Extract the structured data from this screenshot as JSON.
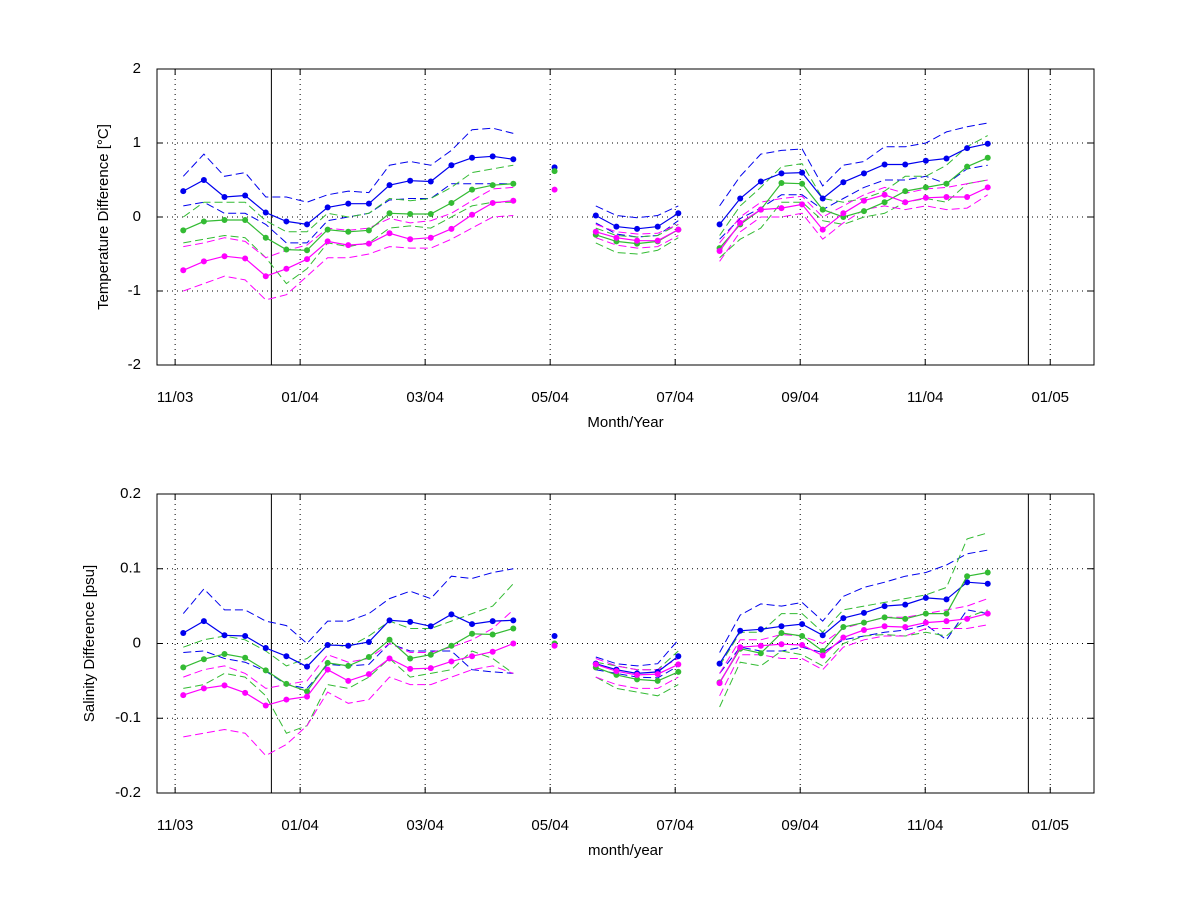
{
  "chart_data": [
    {
      "type": "line",
      "xlabel": "Month/Year",
      "ylabel": "Temperature Difference [°C]",
      "x": [
        0.13,
        0.46,
        0.79,
        1.12,
        1.45,
        1.78,
        2.11,
        2.44,
        2.77,
        3.1,
        3.43,
        3.76,
        4.09,
        4.42,
        4.75,
        5.08,
        5.41,
        5.74,
        6.07,
        6.4,
        6.73,
        7.06,
        7.39,
        7.72,
        8.05,
        8.38,
        8.71,
        9.04,
        9.37,
        9.7,
        10.03,
        10.36,
        10.69,
        11.02,
        11.35,
        11.68,
        12.01,
        12.34,
        12.67,
        13.0
      ],
      "xlim": [
        -0.29,
        14.7
      ],
      "xticks": [
        {
          "value": 0,
          "label": "11/03"
        },
        {
          "value": 2,
          "label": "01/04"
        },
        {
          "value": 4,
          "label": "03/04"
        },
        {
          "value": 6,
          "label": "05/04"
        },
        {
          "value": 8,
          "label": "07/04"
        },
        {
          "value": 10,
          "label": "09/04"
        },
        {
          "value": 12,
          "label": "11/04"
        },
        {
          "value": 14,
          "label": "01/05"
        }
      ],
      "ylim": [
        -2,
        2
      ],
      "yticks": [
        2,
        1,
        0,
        -1,
        -2
      ],
      "grid": true,
      "vlines": [
        1.54,
        13.65
      ],
      "series": [
        {
          "color": "#0000ee",
          "dashed": true,
          "values": [
            0.55,
            0.85,
            0.55,
            0.6,
            0.27,
            0.27,
            0.2,
            0.3,
            0.35,
            0.33,
            0.7,
            0.75,
            0.7,
            0.9,
            1.18,
            1.2,
            1.13,
            null,
            null,
            null,
            0.15,
            0.02,
            -0.01,
            0.02,
            0.15,
            null,
            0.15,
            0.55,
            0.85,
            0.9,
            0.92,
            0.42,
            0.7,
            0.75,
            0.95,
            0.95,
            1.0,
            1.15,
            1.22,
            1.27
          ]
        },
        {
          "color": "#0000ee",
          "dashed": true,
          "values": [
            0.15,
            0.2,
            0.05,
            0.05,
            -0.1,
            -0.35,
            -0.35,
            -0.05,
            0.0,
            0.05,
            0.23,
            0.25,
            0.25,
            0.45,
            0.45,
            0.45,
            0.45,
            null,
            null,
            null,
            -0.08,
            -0.23,
            -0.27,
            -0.25,
            -0.05,
            null,
            -0.3,
            -0.02,
            0.12,
            0.3,
            0.3,
            0.1,
            0.25,
            0.4,
            0.5,
            0.5,
            0.55,
            0.45,
            0.65,
            0.7
          ]
        },
        {
          "color": "#33bb33",
          "dashed": true,
          "values": [
            0.0,
            0.2,
            0.2,
            0.2,
            -0.05,
            -0.2,
            -0.2,
            0.05,
            0.0,
            0.05,
            0.25,
            0.22,
            0.25,
            0.4,
            0.6,
            0.65,
            0.7,
            null,
            null,
            null,
            -0.15,
            -0.25,
            -0.27,
            -0.25,
            -0.1,
            null,
            -0.25,
            0.15,
            0.4,
            0.68,
            0.72,
            0.25,
            0.2,
            0.25,
            0.35,
            0.55,
            0.55,
            0.7,
            0.95,
            1.1
          ]
        },
        {
          "color": "#33bb33",
          "dashed": true,
          "values": [
            -0.35,
            -0.3,
            -0.25,
            -0.28,
            -0.55,
            -0.9,
            -0.7,
            -0.35,
            -0.4,
            -0.35,
            -0.15,
            -0.12,
            -0.15,
            0.0,
            0.15,
            0.2,
            0.2,
            null,
            null,
            null,
            -0.35,
            -0.48,
            -0.5,
            -0.45,
            -0.28,
            null,
            -0.55,
            -0.3,
            -0.15,
            0.2,
            0.2,
            -0.05,
            -0.1,
            0.0,
            0.05,
            0.2,
            0.25,
            0.2,
            0.45,
            0.5
          ]
        },
        {
          "color": "#ff00ff",
          "dashed": true,
          "values": [
            -0.4,
            -0.35,
            -0.28,
            -0.33,
            -0.55,
            -0.45,
            -0.38,
            -0.15,
            -0.18,
            -0.15,
            -0.02,
            -0.08,
            -0.05,
            0.05,
            0.22,
            0.38,
            0.4,
            null,
            null,
            null,
            -0.1,
            -0.2,
            -0.23,
            -0.22,
            -0.1,
            null,
            -0.35,
            0.0,
            0.2,
            0.25,
            0.28,
            0.0,
            0.15,
            0.3,
            0.4,
            0.32,
            0.38,
            0.4,
            0.45,
            0.5
          ]
        },
        {
          "color": "#ff00ff",
          "dashed": true,
          "values": [
            -1.0,
            -0.9,
            -0.8,
            -0.85,
            -1.12,
            -1.05,
            -0.8,
            -0.55,
            -0.55,
            -0.5,
            -0.4,
            -0.42,
            -0.42,
            -0.3,
            -0.15,
            0.0,
            0.02,
            null,
            null,
            null,
            -0.28,
            -0.38,
            -0.42,
            -0.4,
            -0.25,
            null,
            -0.6,
            -0.2,
            0.0,
            0.0,
            0.05,
            -0.3,
            -0.08,
            0.1,
            0.15,
            0.1,
            0.15,
            0.1,
            0.12,
            0.3
          ]
        },
        {
          "color": "#0000ee",
          "values": [
            0.35,
            0.5,
            0.27,
            0.29,
            0.06,
            -0.06,
            -0.1,
            0.13,
            0.18,
            0.18,
            0.43,
            0.49,
            0.48,
            0.7,
            0.8,
            0.82,
            0.78,
            null,
            0.67,
            null,
            0.02,
            -0.13,
            -0.16,
            -0.13,
            0.05,
            null,
            -0.1,
            0.25,
            0.48,
            0.59,
            0.6,
            0.25,
            0.47,
            0.59,
            0.71,
            0.71,
            0.76,
            0.79,
            0.93,
            0.99
          ]
        },
        {
          "color": "#33bb33",
          "values": [
            -0.18,
            -0.06,
            -0.04,
            -0.04,
            -0.28,
            -0.44,
            -0.45,
            -0.17,
            -0.2,
            -0.18,
            0.05,
            0.04,
            0.04,
            0.19,
            0.37,
            0.43,
            0.45,
            null,
            0.62,
            null,
            -0.24,
            -0.33,
            -0.36,
            -0.33,
            -0.17,
            null,
            -0.42,
            -0.1,
            0.1,
            0.46,
            0.45,
            0.1,
            0.0,
            0.08,
            0.2,
            0.35,
            0.4,
            0.45,
            0.68,
            0.8
          ]
        },
        {
          "color": "#ff00ff",
          "values": [
            -0.72,
            -0.6,
            -0.53,
            -0.56,
            -0.8,
            -0.7,
            -0.57,
            -0.33,
            -0.38,
            -0.36,
            -0.22,
            -0.3,
            -0.28,
            -0.16,
            0.03,
            0.19,
            0.22,
            null,
            0.37,
            null,
            -0.2,
            -0.28,
            -0.32,
            -0.32,
            -0.17,
            null,
            -0.46,
            -0.08,
            0.1,
            0.12,
            0.17,
            -0.17,
            0.05,
            0.22,
            0.3,
            0.2,
            0.26,
            0.27,
            0.27,
            0.4
          ]
        }
      ]
    },
    {
      "type": "line",
      "xlabel": "month/year",
      "ylabel": "Salinity Difference [psu]",
      "x": [
        0.13,
        0.46,
        0.79,
        1.12,
        1.45,
        1.78,
        2.11,
        2.44,
        2.77,
        3.1,
        3.43,
        3.76,
        4.09,
        4.42,
        4.75,
        5.08,
        5.41,
        5.74,
        6.07,
        6.4,
        6.73,
        7.06,
        7.39,
        7.72,
        8.05,
        8.38,
        8.71,
        9.04,
        9.37,
        9.7,
        10.03,
        10.36,
        10.69,
        11.02,
        11.35,
        11.68,
        12.01,
        12.34,
        12.67,
        13.0
      ],
      "xlim": [
        -0.29,
        14.7
      ],
      "xticks": [
        {
          "value": 0,
          "label": "11/03"
        },
        {
          "value": 2,
          "label": "01/04"
        },
        {
          "value": 4,
          "label": "03/04"
        },
        {
          "value": 6,
          "label": "05/04"
        },
        {
          "value": 8,
          "label": "07/04"
        },
        {
          "value": 10,
          "label": "09/04"
        },
        {
          "value": 12,
          "label": "11/04"
        },
        {
          "value": 14,
          "label": "01/05"
        }
      ],
      "ylim": [
        -0.2,
        0.2
      ],
      "yticks": [
        0.2,
        0.1,
        0,
        -0.1,
        -0.2
      ],
      "grid": true,
      "vlines": [
        1.54,
        13.65
      ],
      "series": [
        {
          "color": "#0000ee",
          "dashed": true,
          "values": [
            0.04,
            0.073,
            0.045,
            0.045,
            0.03,
            0.024,
            0.0,
            0.03,
            0.03,
            0.04,
            0.06,
            0.07,
            0.06,
            0.09,
            0.087,
            0.095,
            0.1,
            null,
            null,
            null,
            -0.018,
            -0.027,
            -0.03,
            -0.027,
            0.005,
            null,
            -0.012,
            0.038,
            0.053,
            0.05,
            0.055,
            0.03,
            0.063,
            0.075,
            0.082,
            0.09,
            0.095,
            0.105,
            0.12,
            0.125
          ]
        },
        {
          "color": "#0000ee",
          "dashed": true,
          "values": [
            -0.012,
            -0.01,
            -0.02,
            -0.025,
            -0.037,
            -0.055,
            -0.06,
            -0.028,
            -0.03,
            -0.028,
            0.0,
            -0.01,
            -0.01,
            -0.01,
            -0.035,
            -0.038,
            -0.04,
            null,
            null,
            null,
            -0.035,
            -0.04,
            -0.045,
            -0.046,
            -0.03,
            null,
            -0.04,
            -0.005,
            -0.01,
            -0.01,
            -0.005,
            -0.012,
            0.005,
            0.01,
            0.015,
            0.018,
            0.025,
            0.005,
            0.045,
            0.04
          ]
        },
        {
          "color": "#33bb33",
          "dashed": true,
          "values": [
            -0.005,
            0.005,
            0.01,
            0.005,
            -0.01,
            -0.03,
            -0.02,
            0.0,
            -0.005,
            0.01,
            0.03,
            0.02,
            0.02,
            0.03,
            0.04,
            0.05,
            0.08,
            null,
            null,
            null,
            -0.025,
            -0.03,
            -0.035,
            -0.035,
            -0.01,
            null,
            -0.03,
            0.015,
            0.015,
            0.04,
            0.04,
            0.015,
            0.045,
            0.05,
            0.055,
            0.06,
            0.065,
            0.075,
            0.14,
            0.148
          ]
        },
        {
          "color": "#33bb33",
          "dashed": true,
          "values": [
            -0.06,
            -0.055,
            -0.04,
            -0.045,
            -0.07,
            -0.12,
            -0.11,
            -0.055,
            -0.06,
            -0.045,
            -0.02,
            -0.045,
            -0.04,
            -0.035,
            -0.01,
            -0.02,
            -0.04,
            null,
            null,
            null,
            -0.045,
            -0.06,
            -0.065,
            -0.07,
            -0.055,
            null,
            -0.085,
            -0.025,
            -0.03,
            -0.01,
            -0.015,
            -0.03,
            0.0,
            0.01,
            0.012,
            0.01,
            0.015,
            0.01,
            0.035,
            0.045
          ]
        },
        {
          "color": "#ff00ff",
          "dashed": true,
          "values": [
            -0.045,
            -0.035,
            -0.03,
            -0.04,
            -0.06,
            -0.055,
            -0.05,
            -0.015,
            -0.025,
            -0.02,
            0.0,
            -0.012,
            -0.012,
            -0.005,
            0.005,
            0.02,
            0.045,
            null,
            null,
            null,
            -0.02,
            -0.03,
            -0.035,
            -0.035,
            -0.02,
            null,
            -0.04,
            0.005,
            0.005,
            0.012,
            0.01,
            0.0,
            0.02,
            0.028,
            0.035,
            0.035,
            0.04,
            0.045,
            0.05,
            0.06
          ]
        },
        {
          "color": "#ff00ff",
          "dashed": true,
          "values": [
            -0.125,
            -0.12,
            -0.115,
            -0.12,
            -0.15,
            -0.135,
            -0.11,
            -0.065,
            -0.08,
            -0.075,
            -0.045,
            -0.055,
            -0.055,
            -0.045,
            -0.035,
            -0.03,
            -0.04,
            null,
            null,
            null,
            -0.045,
            -0.055,
            -0.06,
            -0.06,
            -0.045,
            null,
            -0.07,
            -0.015,
            -0.015,
            -0.02,
            -0.02,
            -0.035,
            -0.005,
            0.005,
            0.01,
            0.01,
            0.02,
            0.02,
            0.02,
            0.025
          ]
        },
        {
          "color": "#0000ee",
          "values": [
            0.014,
            0.03,
            0.011,
            0.01,
            -0.006,
            -0.017,
            -0.031,
            -0.002,
            -0.003,
            0.002,
            0.031,
            0.029,
            0.023,
            0.039,
            0.026,
            0.03,
            0.031,
            null,
            0.01,
            null,
            -0.027,
            -0.035,
            -0.04,
            -0.038,
            -0.017,
            null,
            -0.027,
            0.017,
            0.019,
            0.023,
            0.026,
            0.011,
            0.034,
            0.041,
            0.05,
            0.052,
            0.061,
            0.059,
            0.082,
            0.08
          ]
        },
        {
          "color": "#33bb33",
          "values": [
            -0.032,
            -0.021,
            -0.014,
            -0.019,
            -0.036,
            -0.054,
            -0.064,
            -0.026,
            -0.03,
            -0.018,
            0.005,
            -0.02,
            -0.015,
            -0.003,
            0.013,
            0.012,
            0.02,
            null,
            0.0,
            null,
            -0.032,
            -0.042,
            -0.048,
            -0.05,
            -0.038,
            null,
            -0.052,
            -0.007,
            -0.013,
            0.014,
            0.01,
            -0.01,
            0.022,
            0.028,
            0.035,
            0.033,
            0.04,
            0.04,
            0.09,
            0.095
          ]
        },
        {
          "color": "#ff00ff",
          "values": [
            -0.069,
            -0.06,
            -0.056,
            -0.066,
            -0.083,
            -0.075,
            -0.071,
            -0.035,
            -0.05,
            -0.041,
            -0.02,
            -0.034,
            -0.033,
            -0.024,
            -0.017,
            -0.011,
            0.0,
            null,
            -0.003,
            null,
            -0.028,
            -0.037,
            -0.042,
            -0.041,
            -0.028,
            null,
            -0.053,
            -0.005,
            -0.003,
            -0.001,
            -0.002,
            -0.016,
            0.008,
            0.018,
            0.023,
            0.022,
            0.028,
            0.03,
            0.033,
            0.04
          ]
        }
      ]
    }
  ]
}
